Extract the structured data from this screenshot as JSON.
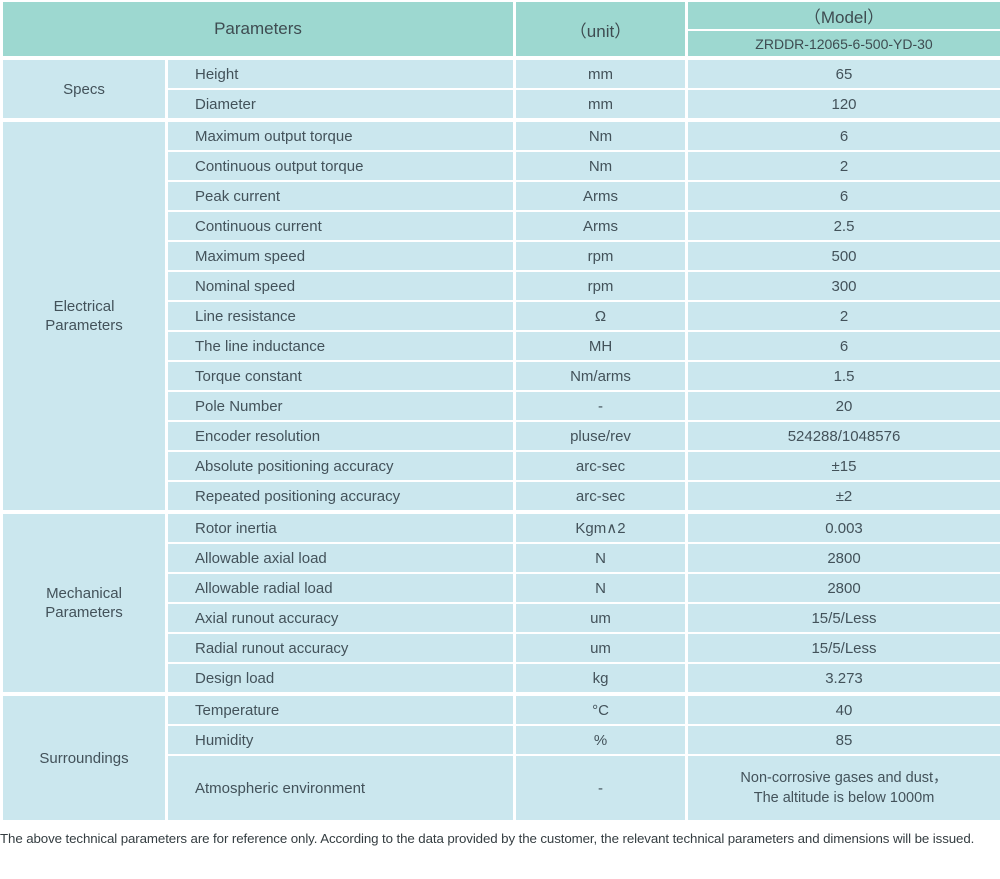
{
  "colors": {
    "header_bg": "#9dd8d0",
    "row_bg": "#cbe7ee",
    "divider": "#ffffff",
    "text": "#43525a"
  },
  "table": {
    "header": {
      "parameters": "Parameters",
      "unit": "（unit）",
      "model": "（Model）",
      "model_number": "ZRDDR-12065-6-500-YD-30"
    },
    "sections": [
      {
        "label": "Specs",
        "rows": [
          {
            "name": "Height",
            "unit": "mm",
            "value": "65"
          },
          {
            "name": "Diameter",
            "unit": "mm",
            "value": "120"
          }
        ]
      },
      {
        "label": "Electrical\nParameters",
        "rows": [
          {
            "name": "Maximum output torque",
            "unit": "Nm",
            "value": "6"
          },
          {
            "name": "Continuous output torque",
            "unit": "Nm",
            "value": "2"
          },
          {
            "name": "Peak current",
            "unit": "Arms",
            "value": "6"
          },
          {
            "name": "Continuous current",
            "unit": "Arms",
            "value": "2.5"
          },
          {
            "name": "Maximum speed",
            "unit": "rpm",
            "value": "500"
          },
          {
            "name": "Nominal speed",
            "unit": "rpm",
            "value": "300"
          },
          {
            "name": "Line resistance",
            "unit": "Ω",
            "value": "2"
          },
          {
            "name": "The line inductance",
            "unit": "MH",
            "value": "6"
          },
          {
            "name": "Torque constant",
            "unit": "Nm/arms",
            "value": "1.5"
          },
          {
            "name": "Pole Number",
            "unit": "-",
            "value": "20"
          },
          {
            "name": "Encoder resolution",
            "unit": "pluse/rev",
            "value": "524288/1048576"
          },
          {
            "name": "Absolute positioning accuracy",
            "unit": "arc-sec",
            "value": "±15"
          },
          {
            "name": "Repeated positioning accuracy",
            "unit": "arc-sec",
            "value": "±2"
          }
        ]
      },
      {
        "label": "Mechanical\nParameters",
        "rows": [
          {
            "name": "Rotor inertia",
            "unit": "Kgm∧2",
            "value": "0.003"
          },
          {
            "name": "Allowable axial load",
            "unit": "N",
            "value": "2800"
          },
          {
            "name": "Allowable radial load",
            "unit": "N",
            "value": "2800"
          },
          {
            "name": "Axial runout accuracy",
            "unit": "um",
            "value": "15/5/Less"
          },
          {
            "name": "Radial runout accuracy",
            "unit": "um",
            "value": "15/5/Less"
          },
          {
            "name": "Design load",
            "unit": "kg",
            "value": "3.273"
          }
        ]
      },
      {
        "label": "Surroundings",
        "rows": [
          {
            "name": "Temperature",
            "unit": "°C",
            "value": "40"
          },
          {
            "name": "Humidity",
            "unit": "%",
            "value": "85"
          },
          {
            "name": "Atmospheric environment",
            "unit": "-",
            "value": "Non-corrosive gases and dust，\nThe altitude is below 1000m"
          }
        ]
      }
    ]
  },
  "footer": {
    "note": "The above technical parameters are for reference only. According to the data provided by the customer, the relevant technical parameters and dimensions will be issued."
  }
}
